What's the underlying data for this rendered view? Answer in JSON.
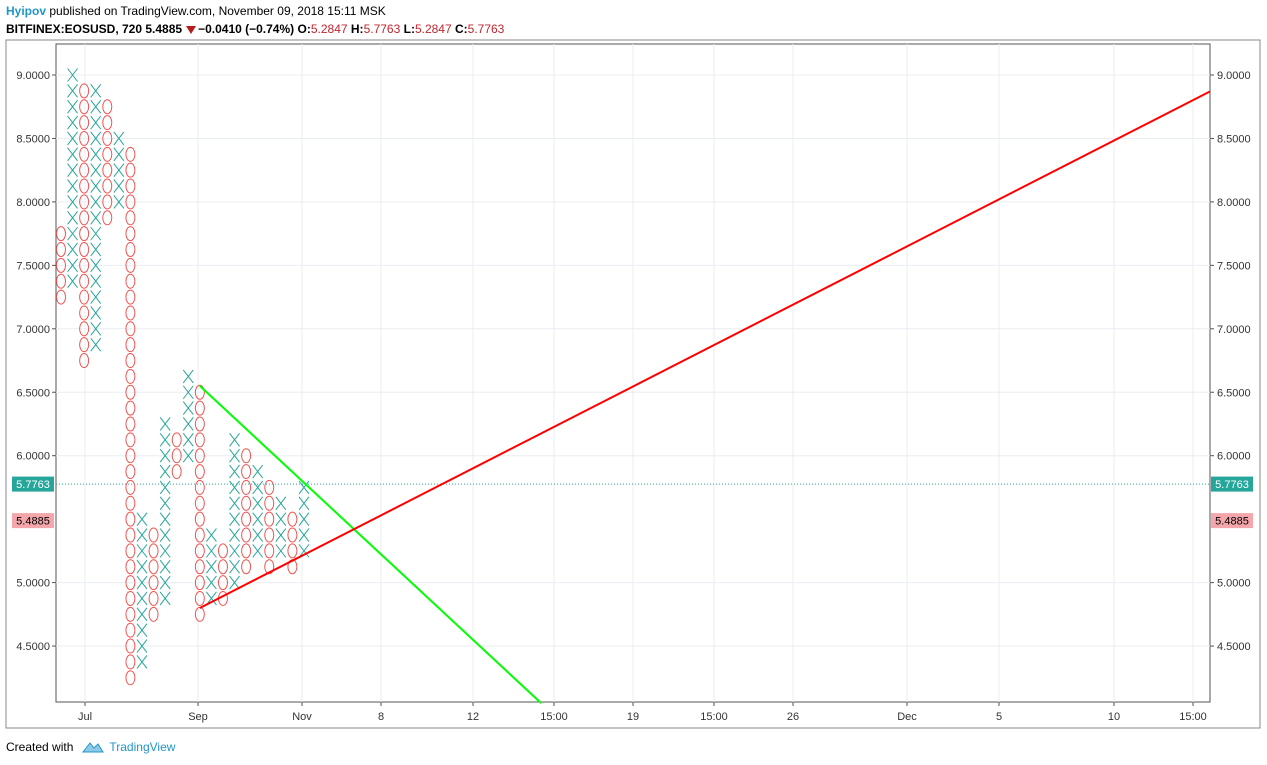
{
  "header": {
    "author": "Hyipov",
    "published_text": "published on TradingView.com, November 09, 2018 15:11 MSK",
    "symbol": "BITFINEX:EOSUSD, 720",
    "last": "5.4885",
    "change": "−0.0410 (−0.74%)",
    "o_label": "O:",
    "o_value": "5.2847",
    "h_label": "H:",
    "h_value": "5.7763",
    "l_label": "L:",
    "l_value": "5.2847",
    "c_label": "C:",
    "c_value": "5.7763"
  },
  "footer": {
    "created_with": "Created with",
    "brand": "TradingView"
  },
  "colors": {
    "x_mark": "#26a69a",
    "o_mark": "#ef5350",
    "support_line": "#ff0000",
    "resistance_line": "#00ff00",
    "price_line": "#26a69a",
    "last_label": "#f4a6ab",
    "grid": "#e9eef2"
  },
  "chart_data": {
    "type": "point-and-figure",
    "box_size": 0.125,
    "ylim": [
      4.05,
      9.25
    ],
    "y_ticks": [
      "9.0000",
      "8.5000",
      "8.0000",
      "7.5000",
      "7.0000",
      "6.5000",
      "6.0000",
      "5.0000",
      "4.5000"
    ],
    "x_ticks": [
      "Jul",
      "Sep",
      "Nov",
      "8",
      "12",
      "15:00",
      "19",
      "15:00",
      "26",
      "Dec",
      "5",
      "10",
      "15:00"
    ],
    "price_line": {
      "value": 5.7763,
      "label": "5.7763"
    },
    "last_close": {
      "value": 5.4885,
      "label": "5.4885"
    },
    "columns": [
      {
        "type": "O",
        "high": 7.75,
        "low": 7.25
      },
      {
        "type": "X",
        "high": 9.0,
        "low": 7.375
      },
      {
        "type": "O",
        "high": 8.875,
        "low": 6.75
      },
      {
        "type": "X",
        "high": 8.875,
        "low": 6.875
      },
      {
        "type": "O",
        "high": 8.75,
        "low": 7.875
      },
      {
        "type": "X",
        "high": 8.5,
        "low": 8.0
      },
      {
        "type": "O",
        "high": 8.375,
        "low": 4.25
      },
      {
        "type": "X",
        "high": 5.5,
        "low": 4.375
      },
      {
        "type": "O",
        "high": 5.375,
        "low": 4.75
      },
      {
        "type": "X",
        "high": 6.25,
        "low": 4.875
      },
      {
        "type": "O",
        "high": 6.125,
        "low": 5.875
      },
      {
        "type": "X",
        "high": 6.625,
        "low": 6.0
      },
      {
        "type": "O",
        "high": 6.5,
        "low": 4.75
      },
      {
        "type": "X",
        "high": 5.375,
        "low": 4.875
      },
      {
        "type": "O",
        "high": 5.25,
        "low": 4.875
      },
      {
        "type": "X",
        "high": 6.125,
        "low": 5.0
      },
      {
        "type": "O",
        "high": 6.0,
        "low": 5.125
      },
      {
        "type": "X",
        "high": 5.875,
        "low": 5.25
      },
      {
        "type": "O",
        "high": 5.75,
        "low": 5.125
      },
      {
        "type": "X",
        "high": 5.625,
        "low": 5.25
      },
      {
        "type": "O",
        "high": 5.5,
        "low": 5.125
      },
      {
        "type": "X",
        "high": 5.75,
        "low": 5.25
      }
    ],
    "trendlines": [
      {
        "name": "resistance",
        "color": "#00ff00",
        "from_column": 12,
        "to_column": 41.5,
        "from": 6.55,
        "to": 4.05
      },
      {
        "name": "support",
        "color": "#ff0000",
        "from_column": 12,
        "to_column": 99.3,
        "from": 4.8,
        "to": 8.87
      }
    ]
  }
}
